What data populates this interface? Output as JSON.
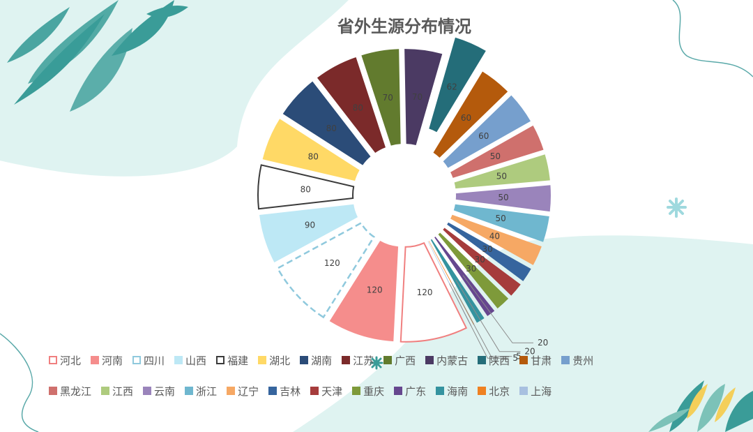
{
  "colors": {
    "background": "#ffffff",
    "blob": "#dff3f1",
    "leaf": "#3a9c98",
    "title": "#595959"
  },
  "chart_data": {
    "type": "pie",
    "style": "exploded-doughnut",
    "title": "省外生源分布情况",
    "legend_position": "bottom",
    "categories": [
      "河北",
      "河南",
      "四川",
      "山西",
      "福建",
      "湖北",
      "湖南",
      "江苏",
      "广西",
      "内蒙古",
      "陕西",
      "甘肃",
      "贵州",
      "黑龙江",
      "江西",
      "云南",
      "浙江",
      "辽宁",
      "吉林",
      "天津",
      "重庆",
      "广东",
      "海南",
      "北京",
      "上海"
    ],
    "values": [
      120,
      120,
      120,
      90,
      80,
      80,
      80,
      80,
      70,
      70,
      62,
      60,
      60,
      50,
      50,
      50,
      50,
      40,
      30,
      30,
      30,
      20,
      20,
      5,
      5
    ],
    "series_colors": [
      "#f07f7f",
      "#f58d8c",
      "#8fc9dd",
      "#bde8f5",
      "#3b3b3b",
      "#ffd966",
      "#2b4c78",
      "#7b2a2a",
      "#627b2e",
      "#4b3a63",
      "#246d79",
      "#b45a0c",
      "#769fcd",
      "#cf706d",
      "#aecb7e",
      "#9a84bb",
      "#6fb7cf",
      "#f6a864",
      "#36659e",
      "#a63c3c",
      "#7e9a3a",
      "#66478f",
      "#34939f",
      "#ef8121",
      "#a8c0e0"
    ],
    "outline_only": [
      "河北",
      "四川",
      "福建"
    ],
    "dashed_outline": [
      "四川"
    ],
    "explode": {
      "陕西": 40
    }
  }
}
